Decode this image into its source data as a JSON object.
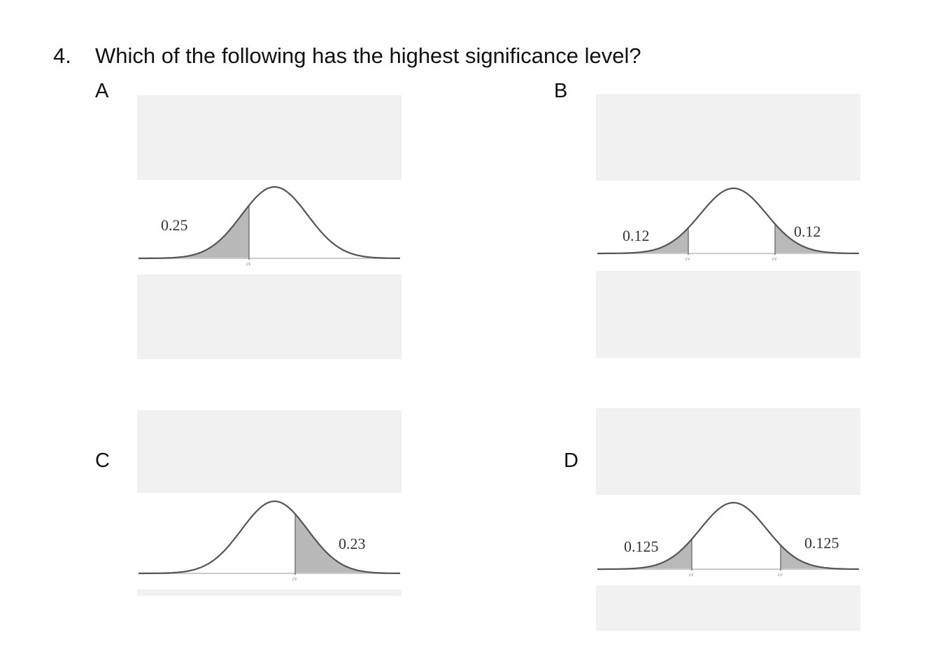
{
  "question": {
    "number": "4.",
    "text": "Which of the following has the highest significance level?"
  },
  "options": [
    {
      "letter": "A",
      "tails": "left",
      "left_label": "0.25",
      "right_label": "",
      "cv_label": "cv"
    },
    {
      "letter": "B",
      "tails": "two",
      "left_label": "0.12",
      "right_label": "0.12",
      "cv_label": "cv"
    },
    {
      "letter": "C",
      "tails": "right",
      "left_label": "",
      "right_label": "0.23",
      "cv_label": "cv"
    },
    {
      "letter": "D",
      "tails": "two",
      "left_label": "0.125",
      "right_label": "0.125",
      "cv_label": "cv"
    }
  ],
  "colors": {
    "shade": "#b9b9b9",
    "curve": "#555555",
    "panel_bg": "#f1f1f1"
  }
}
